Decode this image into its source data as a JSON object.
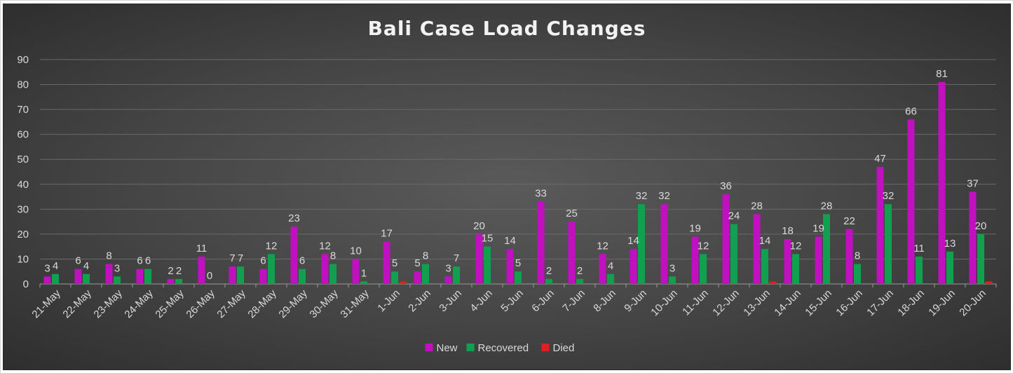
{
  "chart_data": {
    "type": "bar",
    "title": "Bali Case Load Changes",
    "xlabel": "",
    "ylabel": "",
    "ylim": [
      0,
      90
    ],
    "yticks": [
      0,
      10,
      20,
      30,
      40,
      50,
      60,
      70,
      80,
      90
    ],
    "grid": true,
    "legend_position": "bottom",
    "categories": [
      "21-May",
      "22-May",
      "23-May",
      "24-May",
      "25-May",
      "26-May",
      "27-May",
      "28-May",
      "29-May",
      "30-May",
      "31-May",
      "1-Jun",
      "2-Jun",
      "3-Jun",
      "4-Jun",
      "5-Jun",
      "6-Jun",
      "7-Jun",
      "8-Jun",
      "9-Jun",
      "10-Jun",
      "11-Jun",
      "12-Jun",
      "13-Jun",
      "14-Jun",
      "15-Jun",
      "16-Jun",
      "17-Jun",
      "18-Jun",
      "19-Jun",
      "20-Jun"
    ],
    "series": [
      {
        "name": "New",
        "color": "#c010c0",
        "values": [
          3,
          6,
          8,
          6,
          2,
          11,
          7,
          6,
          23,
          12,
          10,
          17,
          5,
          3,
          20,
          14,
          33,
          25,
          12,
          14,
          32,
          19,
          36,
          28,
          18,
          19,
          22,
          47,
          66,
          81,
          37
        ],
        "labels": [
          "3",
          "6",
          "8",
          "6",
          "2",
          "11",
          "7",
          "6",
          "23",
          "12",
          "10",
          "17",
          "5",
          "3",
          "20",
          "14",
          "33",
          "25",
          "12",
          "14",
          "32",
          "19",
          "36",
          "28",
          "18",
          "19",
          "22",
          "47",
          "66",
          "81",
          "37"
        ]
      },
      {
        "name": "Recovered",
        "color": "#10a050",
        "values": [
          4,
          4,
          3,
          6,
          2,
          0,
          7,
          12,
          6,
          8,
          1,
          5,
          8,
          7,
          15,
          5,
          2,
          2,
          4,
          32,
          3,
          12,
          24,
          14,
          12,
          28,
          8,
          32,
          11,
          13,
          20
        ],
        "labels": [
          "4",
          "4",
          "3",
          "6",
          "2",
          "0",
          "7",
          "12",
          "6",
          "8",
          "1",
          "5",
          "8",
          "7",
          "15",
          "5",
          "2",
          "2",
          "4",
          "32",
          "3",
          "12",
          "24",
          "14",
          "12",
          "28",
          "8",
          "32",
          "11",
          "13",
          "20"
        ]
      },
      {
        "name": "Died",
        "color": "#e02020",
        "values": [
          0,
          0,
          0,
          0,
          0,
          0,
          0,
          0,
          0,
          0,
          0,
          1,
          0,
          0,
          0,
          0,
          0,
          0,
          0,
          0,
          0,
          0,
          0,
          1,
          0,
          0,
          0,
          0,
          0,
          0,
          1
        ]
      }
    ]
  }
}
